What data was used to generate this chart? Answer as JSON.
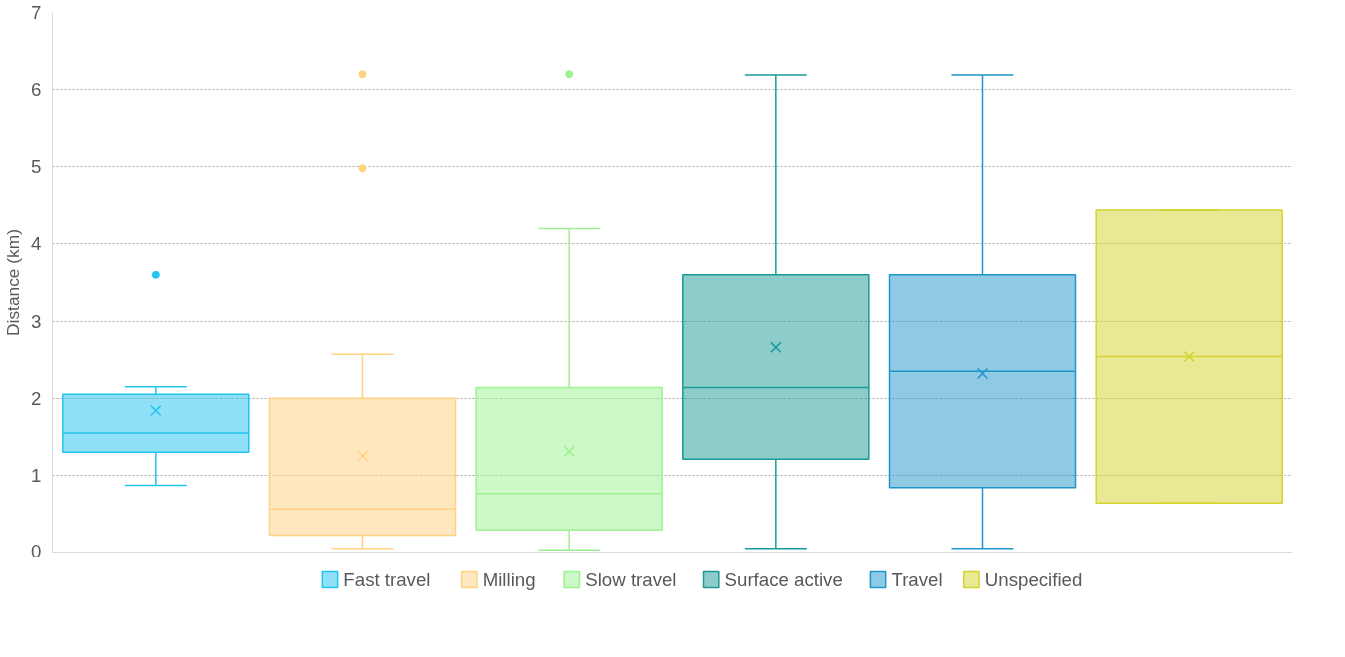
{
  "chart_data": {
    "type": "box",
    "ylabel": "Distance (km)",
    "ylim": [
      0,
      7
    ],
    "yticks": [
      0,
      1,
      2,
      3,
      4,
      5,
      6,
      7
    ],
    "grid": "y",
    "legend": "bottom",
    "categories": [
      null,
      null,
      null,
      null,
      null,
      null
    ],
    "series": [
      {
        "name": "Fast travel",
        "color": "#22c4f0",
        "boxes": [
          {
            "low": 0.87,
            "q1": 1.3,
            "median": 1.55,
            "q3": 2.05,
            "high": 2.15,
            "mean": 1.84,
            "outliers": [
              3.6
            ]
          },
          null,
          null,
          null,
          null,
          null
        ]
      },
      {
        "name": "Milling",
        "color": "#ffd27f",
        "boxes": [
          null,
          {
            "low": 0.05,
            "q1": 0.22,
            "median": 0.56,
            "q3": 2.0,
            "high": 2.57,
            "mean": 1.25,
            "outliers": [
              4.98,
              6.2
            ]
          },
          null,
          null,
          null,
          null
        ]
      },
      {
        "name": "Slow travel",
        "color": "#9cf28f",
        "boxes": [
          null,
          null,
          {
            "low": 0.03,
            "q1": 0.29,
            "median": 0.76,
            "q3": 2.14,
            "high": 4.2,
            "mean": 1.31,
            "outliers": [
              6.2
            ]
          },
          null,
          null,
          null
        ]
      },
      {
        "name": "Surface active",
        "color": "#1a9a96",
        "boxes": [
          null,
          null,
          null,
          {
            "low": 0.05,
            "q1": 1.21,
            "median": 2.14,
            "q3": 3.6,
            "high": 6.19,
            "mean": 2.66
          },
          null,
          null
        ]
      },
      {
        "name": "Travel",
        "color": "#1e96c8",
        "boxes": [
          null,
          null,
          null,
          null,
          {
            "low": 0.05,
            "q1": 0.84,
            "median": 2.35,
            "q3": 3.6,
            "high": 6.19,
            "mean": 2.32
          },
          null
        ]
      },
      {
        "name": "Unspecified",
        "color": "#d4d42c",
        "boxes": [
          null,
          null,
          null,
          null,
          null,
          {
            "low": 0.64,
            "q1": 0.64,
            "median": 2.54,
            "q3": 4.44,
            "high": 4.44,
            "mean": 2.54
          }
        ]
      }
    ]
  }
}
